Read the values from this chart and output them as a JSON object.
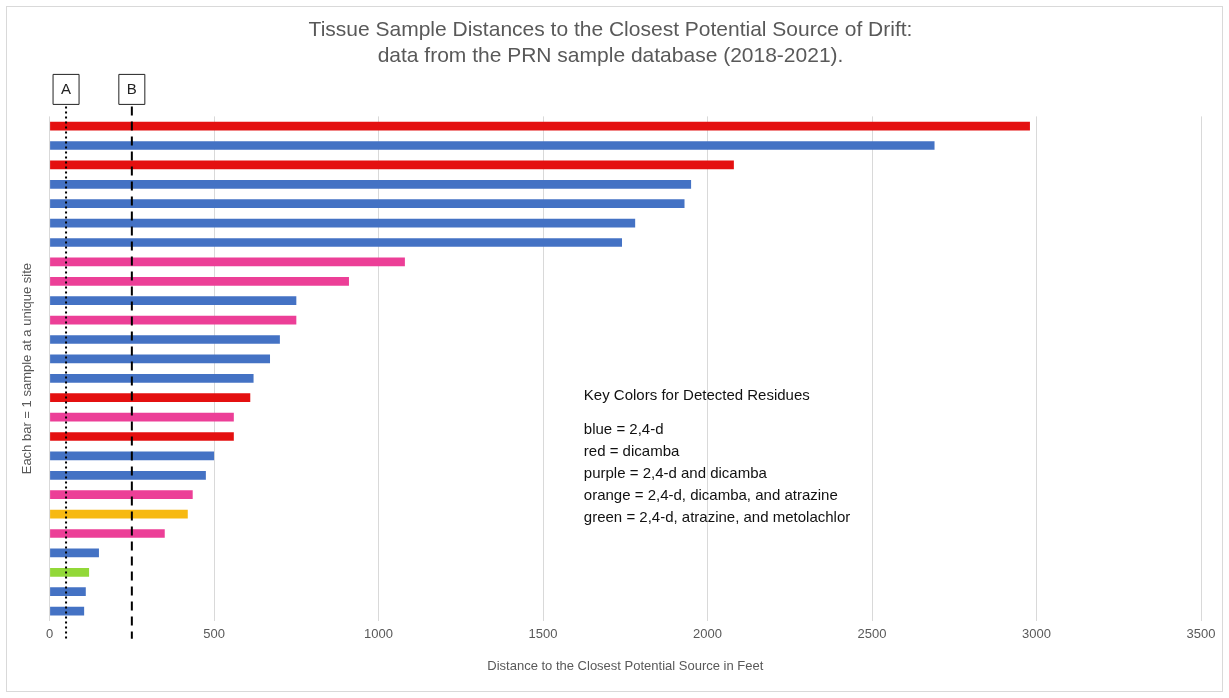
{
  "chart_data": {
    "type": "bar",
    "orientation": "horizontal",
    "title": "Tissue Sample Distances to the Closest Potential Source of Drift:\ndata from the PRN sample database (2018-2021).",
    "xlabel": "Distance to the Closest Potential Source in Feet",
    "ylabel": "Each bar = 1 sample at a unique site",
    "categories": [
      null,
      null,
      null,
      null,
      null,
      null,
      null,
      null,
      null,
      null,
      null,
      null,
      null,
      null,
      null,
      null,
      null,
      null,
      null,
      null,
      null,
      null,
      null,
      null,
      null,
      null
    ],
    "values": [
      2980,
      2690,
      2080,
      1950,
      1930,
      1780,
      1740,
      1080,
      910,
      750,
      750,
      700,
      670,
      620,
      610,
      560,
      560,
      500,
      475,
      435,
      420,
      350,
      150,
      120,
      110,
      105
    ],
    "colors": [
      "#e41010",
      "#4472c4",
      "#e41010",
      "#4472c4",
      "#4472c4",
      "#4472c4",
      "#4472c4",
      "#ec3f97",
      "#ec3f97",
      "#4472c4",
      "#ec3f97",
      "#4472c4",
      "#4472c4",
      "#4472c4",
      "#e41010",
      "#ec3f97",
      "#e41010",
      "#4472c4",
      "#4472c4",
      "#ec3f97",
      "#f7b912",
      "#ec3f97",
      "#4472c4",
      "#92d838",
      "#4472c4",
      "#4472c4"
    ],
    "xlim": [
      0,
      3500
    ],
    "xticks": [
      0,
      500,
      1000,
      1500,
      2000,
      2500,
      3000,
      3500
    ],
    "grid": "x",
    "legend": false,
    "ref_lines": [
      {
        "axis": "x",
        "value": 50,
        "label": "A",
        "line_style": "dotted"
      },
      {
        "axis": "x",
        "value": 250,
        "label": "B",
        "line_style": "dashed"
      }
    ],
    "annotations": [
      "Key Colors for Detected Residues",
      "blue = 2,4-d",
      "red = dicamba",
      "purple = 2,4-d and dicamba",
      "orange = 2,4-d, dicamba, and atrazine",
      "green = 2,4-d, atrazine, and metolachlor"
    ]
  }
}
